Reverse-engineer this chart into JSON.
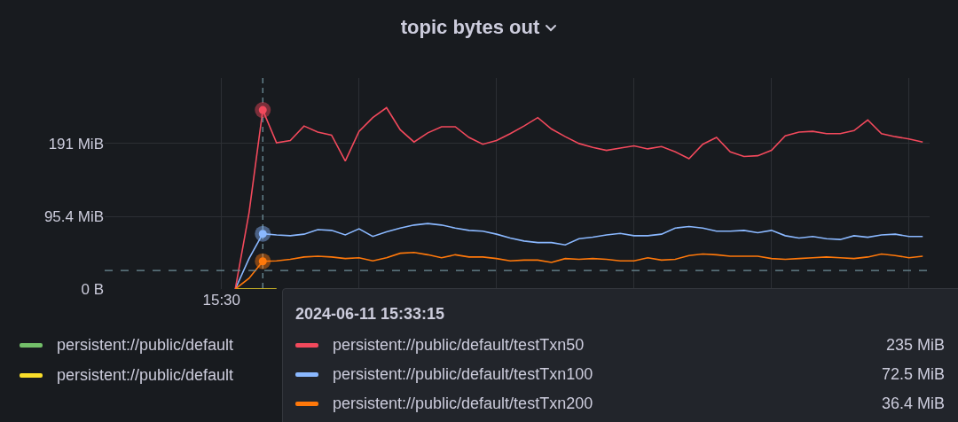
{
  "chart_data": {
    "type": "line",
    "title": "topic bytes out",
    "categories": [
      null,
      null,
      null,
      null,
      null,
      null,
      null,
      null,
      "15:30",
      null,
      null,
      null,
      null,
      null,
      null,
      null,
      null,
      null,
      null,
      null,
      null,
      null,
      null,
      null,
      null,
      null,
      null,
      null,
      null,
      null,
      null,
      null,
      null,
      null,
      null,
      null,
      null,
      null,
      null,
      null,
      null,
      null,
      null,
      null,
      null,
      null,
      null,
      null,
      null,
      null,
      null,
      null,
      null,
      null,
      null,
      null,
      null,
      null,
      null,
      null
    ],
    "ylim": [
      0,
      277
    ],
    "yticks": [
      {
        "value": 0,
        "label": "0 B"
      },
      {
        "value": 95.4,
        "label": "95.4 MiB"
      },
      {
        "value": 191,
        "label": "191 MiB"
      }
    ],
    "grid": true,
    "legend": "bottom",
    "series": [
      {
        "name": "persistent://public/default",
        "color": "#73bf69",
        "values": [
          null,
          null,
          null,
          null,
          null,
          null,
          null,
          null,
          null,
          null,
          null,
          null,
          null,
          null,
          null,
          null,
          null,
          null,
          null,
          null,
          null,
          null,
          null,
          null,
          null,
          null,
          null,
          null,
          null,
          null,
          null,
          null,
          null,
          null,
          null,
          null,
          null,
          null,
          null,
          null,
          null,
          null,
          null,
          null,
          null,
          null,
          null,
          null,
          null,
          null,
          null,
          null,
          null,
          null,
          null,
          null,
          null,
          null,
          null,
          null
        ]
      },
      {
        "name": "persistent://public/default",
        "color": "#fade2a",
        "values": [
          null,
          null,
          null,
          null,
          null,
          null,
          null,
          null,
          null,
          0,
          0,
          0,
          0,
          null,
          null,
          null,
          null,
          null,
          null,
          null,
          null,
          null,
          null,
          null,
          null,
          null,
          null,
          null,
          null,
          null,
          null,
          null,
          null,
          null,
          null,
          null,
          null,
          null,
          null,
          null,
          null,
          null,
          null,
          null,
          null,
          null,
          null,
          null,
          null,
          null,
          null,
          null,
          null,
          null,
          null,
          null,
          null,
          null,
          null,
          null
        ]
      },
      {
        "name": "persistent://public/default/testTxn100",
        "color": "#8ab8ff",
        "values": [
          null,
          null,
          null,
          null,
          null,
          null,
          null,
          null,
          null,
          0,
          40,
          72.5,
          71,
          70,
          72,
          78,
          77,
          71,
          79,
          69,
          75,
          80,
          84,
          86,
          84,
          80,
          77,
          76,
          72,
          67,
          63,
          61,
          61,
          58,
          66,
          68,
          71,
          73,
          70,
          70,
          72,
          80,
          82,
          80,
          76,
          76,
          77,
          74,
          77,
          70,
          67,
          69,
          66,
          65,
          70,
          68,
          71,
          72,
          69,
          69
        ]
      },
      {
        "name": "persistent://public/default/testTxn50",
        "color": "#f2495c",
        "values": [
          null,
          null,
          null,
          null,
          null,
          null,
          null,
          null,
          null,
          0,
          100,
          235,
          192,
          195,
          214,
          206,
          202,
          168,
          207,
          225,
          238,
          209,
          193,
          205,
          213,
          213,
          199,
          190,
          195,
          204,
          214,
          225,
          210,
          200,
          191,
          186,
          182,
          185,
          188,
          184,
          187,
          180,
          171,
          190,
          199,
          180,
          174,
          175,
          182,
          201,
          206,
          207,
          204,
          204,
          208,
          222,
          204,
          200,
          197,
          193
        ]
      },
      {
        "name": "persistent://public/default/testTxn200",
        "color": "#ff780a",
        "values": [
          null,
          null,
          null,
          null,
          null,
          null,
          null,
          null,
          null,
          0,
          14,
          36.4,
          37,
          39,
          42,
          43,
          42,
          40,
          41,
          37,
          41,
          47,
          48,
          45,
          41,
          45,
          42,
          42,
          40,
          37,
          38,
          38,
          35,
          40,
          39,
          40,
          39,
          37,
          37,
          41,
          38,
          39,
          44,
          46,
          45,
          43,
          43,
          43,
          40,
          39,
          40,
          41,
          42,
          41,
          40,
          42,
          46,
          44,
          41,
          43
        ]
      }
    ],
    "ref_lines": [
      {
        "axis": "y",
        "value": 24.4,
        "color": "#6e8f99",
        "line_style": "dashed"
      }
    ],
    "annotations": [
      "2024-06-11 15:33:15",
      "235 MiB",
      "72.5 MiB",
      "36.4 MiB"
    ]
  }
}
